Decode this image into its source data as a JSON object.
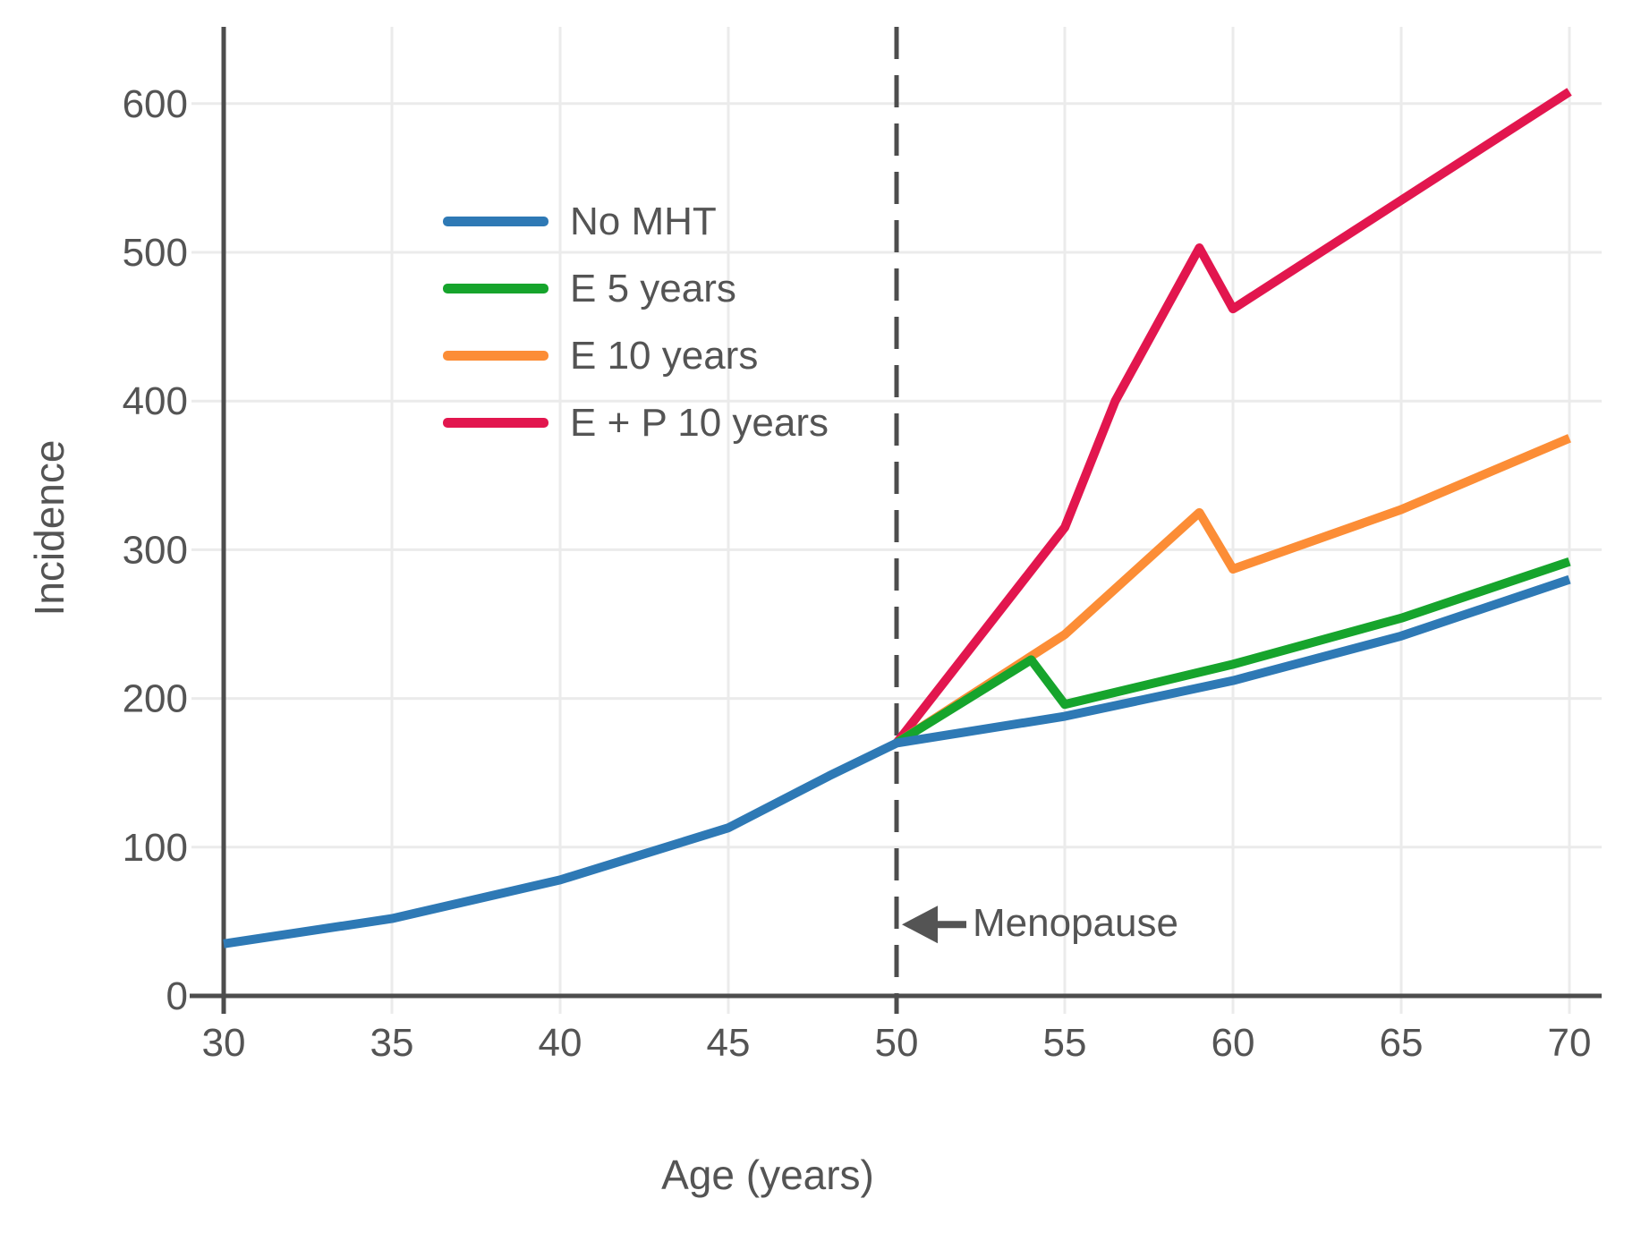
{
  "figure": {
    "background": "#ffffff"
  },
  "axes": {
    "x_label": "Age (years)",
    "y_label": "Incidence",
    "x_ticks": [
      30,
      35,
      40,
      45,
      50,
      55,
      60,
      65,
      70
    ],
    "y_ticks": [
      0,
      100,
      200,
      300,
      400,
      500,
      600
    ],
    "text_color": "#545454",
    "axis_color": "#4d4d4d",
    "grid_color": "#ebebeb"
  },
  "legend": {
    "position": "upper-left-inside",
    "items": [
      {
        "label": "No MHT",
        "color": "#2e79b5"
      },
      {
        "label": "E 5 years",
        "color": "#16a42c"
      },
      {
        "label": "E 10 years",
        "color": "#fc8d36"
      },
      {
        "label": "E + P 10 years",
        "color": "#e2164e"
      }
    ]
  },
  "annotation": {
    "text": "Menopause",
    "icon": "left-arrow",
    "at_age": 50,
    "at_value": 48,
    "color": "#545454"
  },
  "chart_data": {
    "type": "line",
    "title": "",
    "xlabel": "Age (years)",
    "ylabel": "Incidence",
    "xlim": [
      30,
      70
    ],
    "ylim": [
      0,
      650
    ],
    "grid": true,
    "legend_position": "upper-left-inside",
    "vline": {
      "x": 50,
      "style": "dashed",
      "label": "Menopause"
    },
    "series": [
      {
        "name": "No MHT",
        "color": "#2e79b5",
        "points": [
          [
            30,
            35
          ],
          [
            35,
            52
          ],
          [
            40,
            78
          ],
          [
            45,
            113
          ],
          [
            48,
            148
          ],
          [
            50,
            170
          ],
          [
            55,
            188
          ],
          [
            60,
            212
          ],
          [
            65,
            242
          ],
          [
            70,
            280
          ]
        ]
      },
      {
        "name": "E 5 years",
        "color": "#16a42c",
        "points": [
          [
            50,
            170
          ],
          [
            54,
            226
          ],
          [
            55,
            196
          ],
          [
            60,
            223
          ],
          [
            65,
            254
          ],
          [
            70,
            292
          ]
        ]
      },
      {
        "name": "E 10 years",
        "color": "#fc8d36",
        "points": [
          [
            50,
            170
          ],
          [
            55,
            243
          ],
          [
            59,
            325
          ],
          [
            60,
            287
          ],
          [
            65,
            327
          ],
          [
            70,
            375
          ]
        ]
      },
      {
        "name": "E + P 10 years",
        "color": "#e2164e",
        "points": [
          [
            50,
            170
          ],
          [
            55,
            315
          ],
          [
            56.5,
            400
          ],
          [
            59,
            503
          ],
          [
            60,
            462
          ],
          [
            65,
            535
          ],
          [
            70,
            608
          ]
        ]
      }
    ]
  }
}
